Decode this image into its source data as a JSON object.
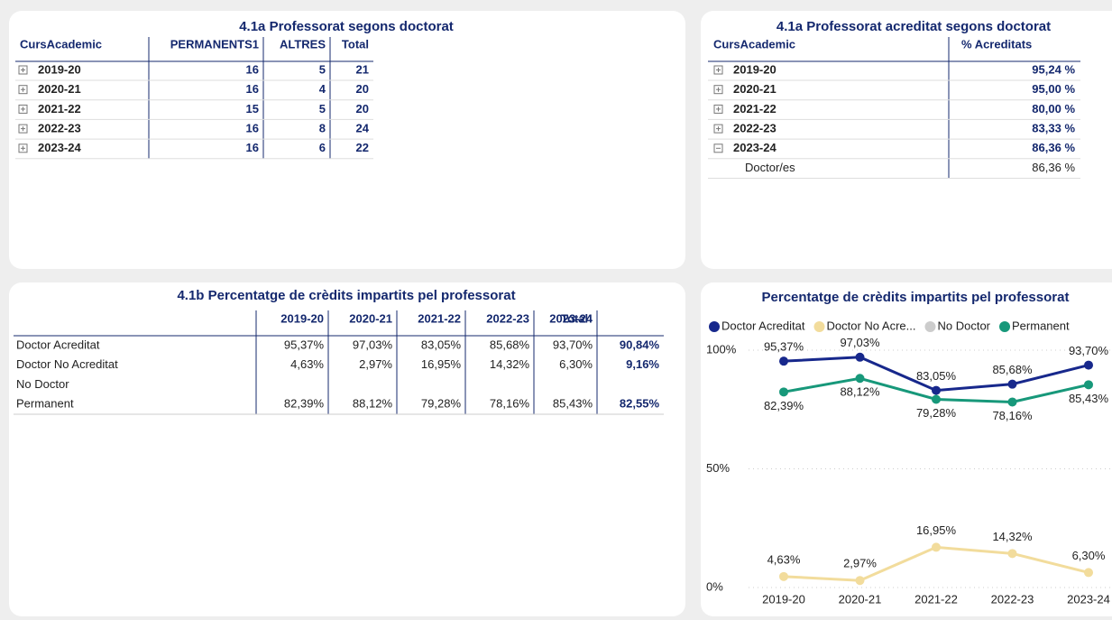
{
  "table_a": {
    "title": "4.1a Professorat segons doctorat",
    "columns": [
      "CursAcademic",
      "PERMANENTS1",
      "ALTRES",
      "Total"
    ],
    "rows": [
      [
        "2019-20",
        "16",
        "5",
        "21"
      ],
      [
        "2020-21",
        "16",
        "4",
        "20"
      ],
      [
        "2021-22",
        "15",
        "5",
        "20"
      ],
      [
        "2022-23",
        "16",
        "8",
        "24"
      ],
      [
        "2023-24",
        "16",
        "6",
        "22"
      ]
    ]
  },
  "table_b": {
    "title": "4.1a Professorat acreditat segons doctorat",
    "columns": [
      "CursAcademic",
      "% Acreditats"
    ],
    "rows": [
      [
        "2019-20",
        "95,24 %"
      ],
      [
        "2020-21",
        "95,00 %"
      ],
      [
        "2021-22",
        "80,00 %"
      ],
      [
        "2022-23",
        "83,33 %"
      ],
      [
        "2023-24",
        "86,36 %"
      ]
    ],
    "expanded_row": [
      "Doctor/es",
      "86,36 %"
    ]
  },
  "table_c": {
    "title": "4.1b Percentatge de crèdits impartits pel professorat",
    "columns": [
      "2019-20",
      "2020-21",
      "2021-22",
      "2022-23",
      "2023-24",
      "Total"
    ],
    "rows": [
      {
        "label": "Doctor Acreditat",
        "cells": [
          "95,37%",
          "97,03%",
          "83,05%",
          "85,68%",
          "93,70%",
          "90,84%"
        ]
      },
      {
        "label": "Doctor No Acreditat",
        "cells": [
          "4,63%",
          "2,97%",
          "16,95%",
          "14,32%",
          "6,30%",
          "9,16%"
        ]
      },
      {
        "label": "No Doctor",
        "cells": []
      },
      {
        "label": "Permanent",
        "cells": [
          "82,39%",
          "88,12%",
          "79,28%",
          "78,16%",
          "85,43%",
          "82,55%"
        ]
      }
    ]
  },
  "chart_data": {
    "type": "line",
    "title": "Percentatge de crèdits impartits pel professorat",
    "categories": [
      "2019-20",
      "2020-21",
      "2021-22",
      "2022-23",
      "2023-24"
    ],
    "series": [
      {
        "name": "Doctor Acreditat",
        "color": "#17288c",
        "values": [
          95.37,
          97.03,
          83.05,
          85.68,
          93.7
        ],
        "value_labels": [
          "95,37%",
          "97,03%",
          "83,05%",
          "85,68%",
          "93,70%"
        ]
      },
      {
        "name": "Doctor No Acre...",
        "color": "#f2dc9c",
        "values": [
          4.63,
          2.97,
          16.95,
          14.32,
          6.3
        ],
        "value_labels": [
          "4,63%",
          "2,97%",
          "16,95%",
          "14,32%",
          "6,30%"
        ]
      },
      {
        "name": "No Doctor",
        "color": "#cccccc",
        "values": [
          null,
          null,
          null,
          null,
          null
        ]
      },
      {
        "name": "Permanent",
        "color": "#17987a",
        "values": [
          82.39,
          88.12,
          79.28,
          78.16,
          85.43
        ],
        "value_labels": [
          "82,39%",
          "88,12%",
          "79,28%",
          "78,16%",
          "85,43%"
        ]
      }
    ],
    "ylim": [
      0,
      100
    ],
    "yticks": [
      {
        "value": 0,
        "label": "0%"
      },
      {
        "value": 50,
        "label": "50%"
      },
      {
        "value": 100,
        "label": "100%"
      }
    ],
    "grid": true,
    "legend": "top"
  }
}
